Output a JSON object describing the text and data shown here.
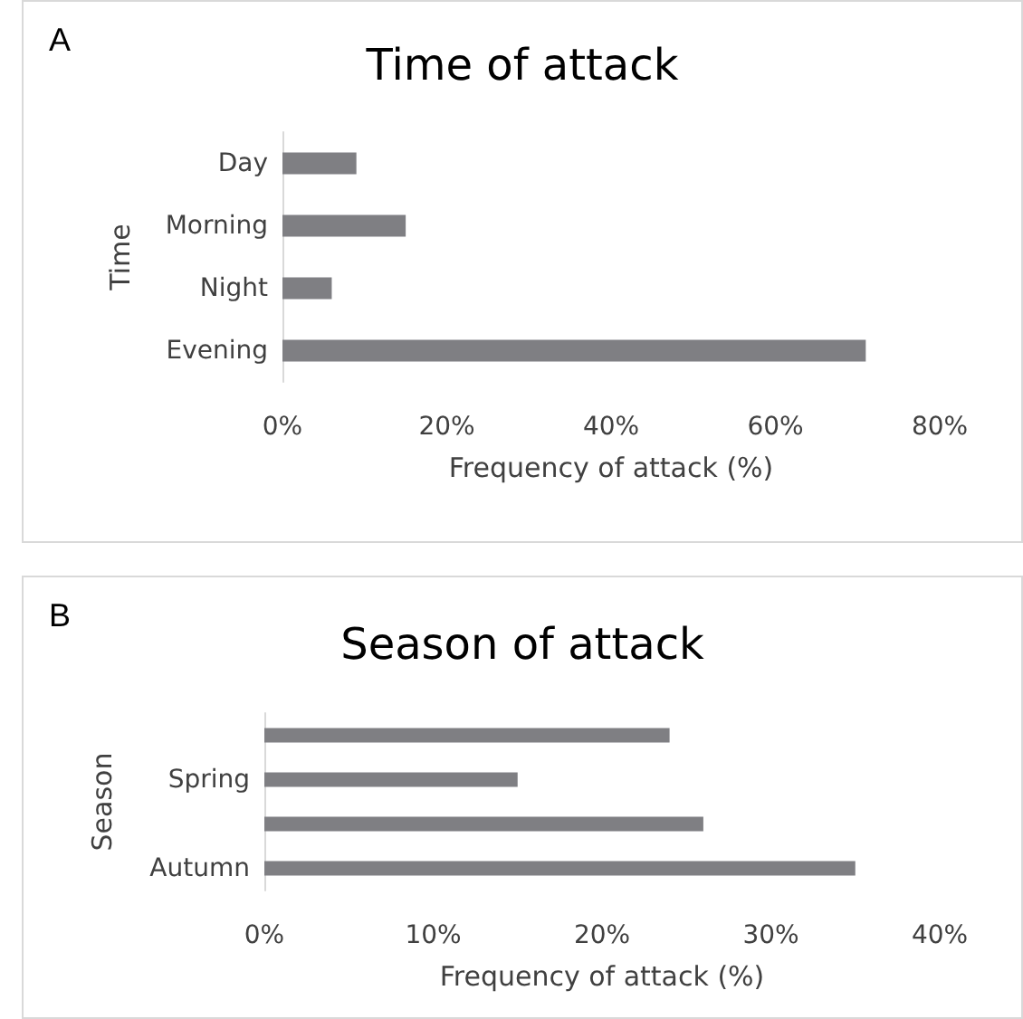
{
  "chart_data": [
    {
      "type": "bar",
      "orientation": "horizontal",
      "title": "Time of attack",
      "ylabel": "Time",
      "xlabel": "Frequency of attack (%)",
      "annotations": [
        "A"
      ],
      "categories": [
        "Day",
        "Morning",
        "Night",
        "Evening"
      ],
      "series": [
        {
          "color": "#7f7f83",
          "values": [
            9,
            15,
            6,
            71
          ]
        }
      ],
      "xlim": [
        0,
        80
      ],
      "xticks": [
        {
          "value": 0,
          "label": "0%"
        },
        {
          "value": 20,
          "label": "20%"
        },
        {
          "value": 40,
          "label": "40%"
        },
        {
          "value": 60,
          "label": "60%"
        },
        {
          "value": 80,
          "label": "80%"
        }
      ],
      "grid": false
    },
    {
      "type": "bar",
      "orientation": "horizontal",
      "title": "Season of attack",
      "ylabel": "Season",
      "xlabel": "Frequency of attack (%)",
      "annotations": [
        "B"
      ],
      "categories": [
        null,
        "Spring",
        null,
        "Autumn"
      ],
      "series": [
        {
          "color": "#7f7f83",
          "values": [
            24,
            15,
            26,
            35
          ]
        }
      ],
      "xlim": [
        0,
        40
      ],
      "xticks": [
        {
          "value": 0,
          "label": "0%"
        },
        {
          "value": 10,
          "label": "10%"
        },
        {
          "value": 20,
          "label": "20%"
        },
        {
          "value": 30,
          "label": "30%"
        },
        {
          "value": 40,
          "label": "40%"
        }
      ],
      "grid": false
    }
  ]
}
